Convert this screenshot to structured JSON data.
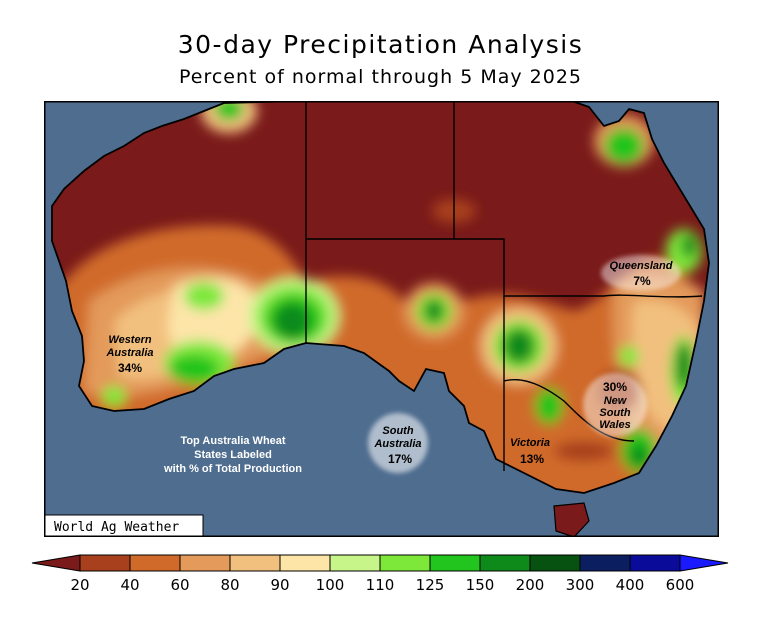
{
  "title": "30-day Precipitation Analysis",
  "subtitle": "Percent of normal through 5 May 2025",
  "credit": "World Ag Weather",
  "note": [
    "Top Australia Wheat",
    "States Labeled",
    "with % of Total Production"
  ],
  "states": [
    {
      "id": "wa",
      "lines": [
        "Western",
        "Australia"
      ],
      "pct": "34%"
    },
    {
      "id": "sa",
      "lines": [
        "South",
        "Australia"
      ],
      "pct": "17%"
    },
    {
      "id": "vic",
      "lines": [
        "Victoria"
      ],
      "pct": "13%"
    },
    {
      "id": "nsw",
      "lines": [
        "New",
        "South",
        "Wales"
      ],
      "pct": "30%"
    },
    {
      "id": "qld",
      "lines": [
        "Queensland"
      ],
      "pct": "7%"
    }
  ],
  "legend": {
    "labels": [
      "20",
      "40",
      "60",
      "80",
      "90",
      "100",
      "110",
      "125",
      "150",
      "200",
      "300",
      "400",
      "600"
    ],
    "colors": {
      "below_20": "#7a1a1a",
      "20_40": "#a8401e",
      "40_60": "#d06a2a",
      "60_80": "#e39a5a",
      "80_90": "#f2c07e",
      "90_100": "#fde5a8",
      "100_110": "#c8f58a",
      "110_125": "#7ee83a",
      "125_150": "#22c41e",
      "150_200": "#0d8a1a",
      "200_300": "#075210",
      "300_400": "#0b1f60",
      "400_600": "#0b0b9a",
      "above_600": "#1a1aff"
    }
  },
  "colors": {
    "ocean": "#4f6d8f",
    "land_base": "#7a1a1a",
    "border": "#000000"
  }
}
